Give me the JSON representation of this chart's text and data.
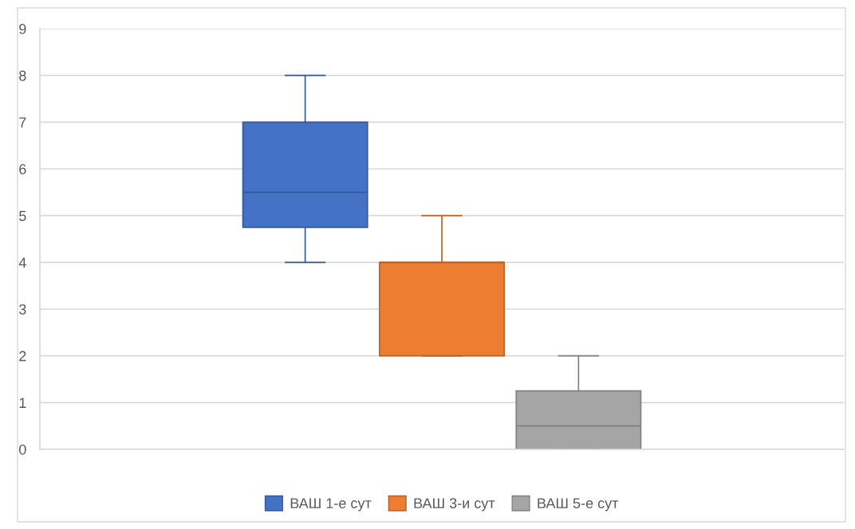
{
  "chart_data": {
    "type": "box",
    "categories": [
      null
    ],
    "series": [
      {
        "name": "ВАШ 1-е сут",
        "color": "#4472c4",
        "boxes": [
          {
            "low": 4,
            "q1": 4.75,
            "median": 5.5,
            "q3": 7,
            "high": 8
          }
        ]
      },
      {
        "name": "ВАШ 3-и сут",
        "color": "#ed7d31",
        "boxes": [
          {
            "low": 2,
            "q1": 2,
            "median": 4,
            "q3": 4,
            "high": 5
          }
        ]
      },
      {
        "name": "ВАШ 5-е сут",
        "color": "#a5a5a5",
        "boxes": [
          {
            "low": 0,
            "q1": 0,
            "median": 0.5,
            "q3": 1.25,
            "high": 2
          }
        ]
      }
    ],
    "ylim": [
      0,
      9
    ],
    "yticks": [
      0,
      1,
      2,
      3,
      4,
      5,
      6,
      7,
      8,
      9
    ],
    "grid": "y",
    "legend": "bottom",
    "tick_labels": "y"
  }
}
